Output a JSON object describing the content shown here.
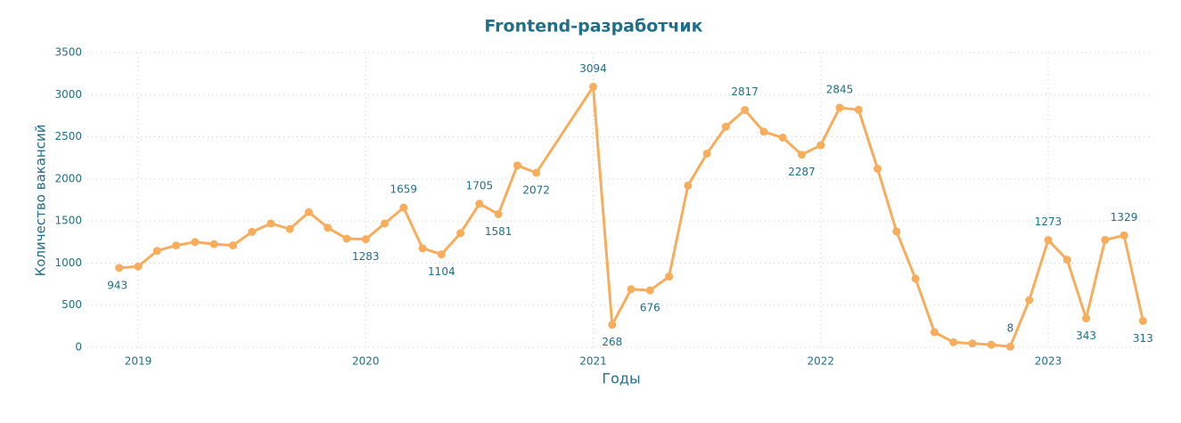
{
  "chart_data": {
    "type": "line",
    "title": "Frontend-разработчик",
    "x_label": "Годы",
    "y_label": "Количество вакансий",
    "x": [
      "2018-12",
      "2019-01",
      "2019-02",
      "2019-03",
      "2019-04",
      "2019-05",
      "2019-06",
      "2019-07",
      "2019-08",
      "2019-09",
      "2019-10",
      "2019-11",
      "2019-12",
      "2020-01",
      "2020-02",
      "2020-03",
      "2020-04",
      "2020-05",
      "2020-06",
      "2020-07",
      "2020-08",
      "2020-09",
      "2020-10",
      "2021-01",
      "2021-02",
      "2021-03",
      "2021-04",
      "2021-05",
      "2021-06",
      "2021-07",
      "2021-08",
      "2021-09",
      "2021-10",
      "2021-11",
      "2021-12",
      "2022-01",
      "2022-02",
      "2022-03",
      "2022-04",
      "2022-05",
      "2022-06",
      "2022-07",
      "2022-08",
      "2022-09",
      "2022-10",
      "2022-11",
      "2022-12",
      "2023-01",
      "2023-02",
      "2023-03",
      "2023-04",
      "2023-05",
      "2023-06"
    ],
    "series": [
      {
        "name": "Frontend-разработчик",
        "color": "#f8ad5c",
        "values": [
          943,
          960,
          1145,
          1210,
          1250,
          1225,
          1210,
          1370,
          1470,
          1405,
          1605,
          1420,
          1290,
          1283,
          1470,
          1659,
          1175,
          1104,
          1355,
          1705,
          1581,
          2160,
          2072,
          3094,
          268,
          690,
          676,
          840,
          1920,
          2300,
          2620,
          2817,
          2560,
          2490,
          2287,
          2400,
          2845,
          2820,
          2120,
          1375,
          815,
          180,
          60,
          45,
          30,
          8,
          560,
          1273,
          1040,
          343,
          1275,
          1329,
          313
        ]
      }
    ],
    "xticks": [
      "2019",
      "2020",
      "2021",
      "2022",
      "2023"
    ],
    "ylim": [
      0,
      3500
    ],
    "yticks": [
      0,
      500,
      1000,
      1500,
      2000,
      2500,
      3000,
      3500
    ],
    "grid": true
  }
}
